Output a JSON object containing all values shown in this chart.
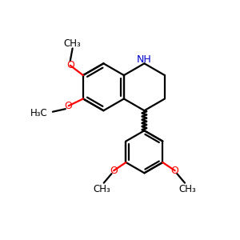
{
  "bg_color": "#ffffff",
  "bond_color": "#000000",
  "n_color": "#0000cd",
  "o_color": "#ff0000",
  "bond_width": 1.6,
  "figsize": [
    3.0,
    3.0
  ],
  "dpi": 100,
  "xlim": [
    0,
    10
  ],
  "ylim": [
    0,
    10
  ]
}
